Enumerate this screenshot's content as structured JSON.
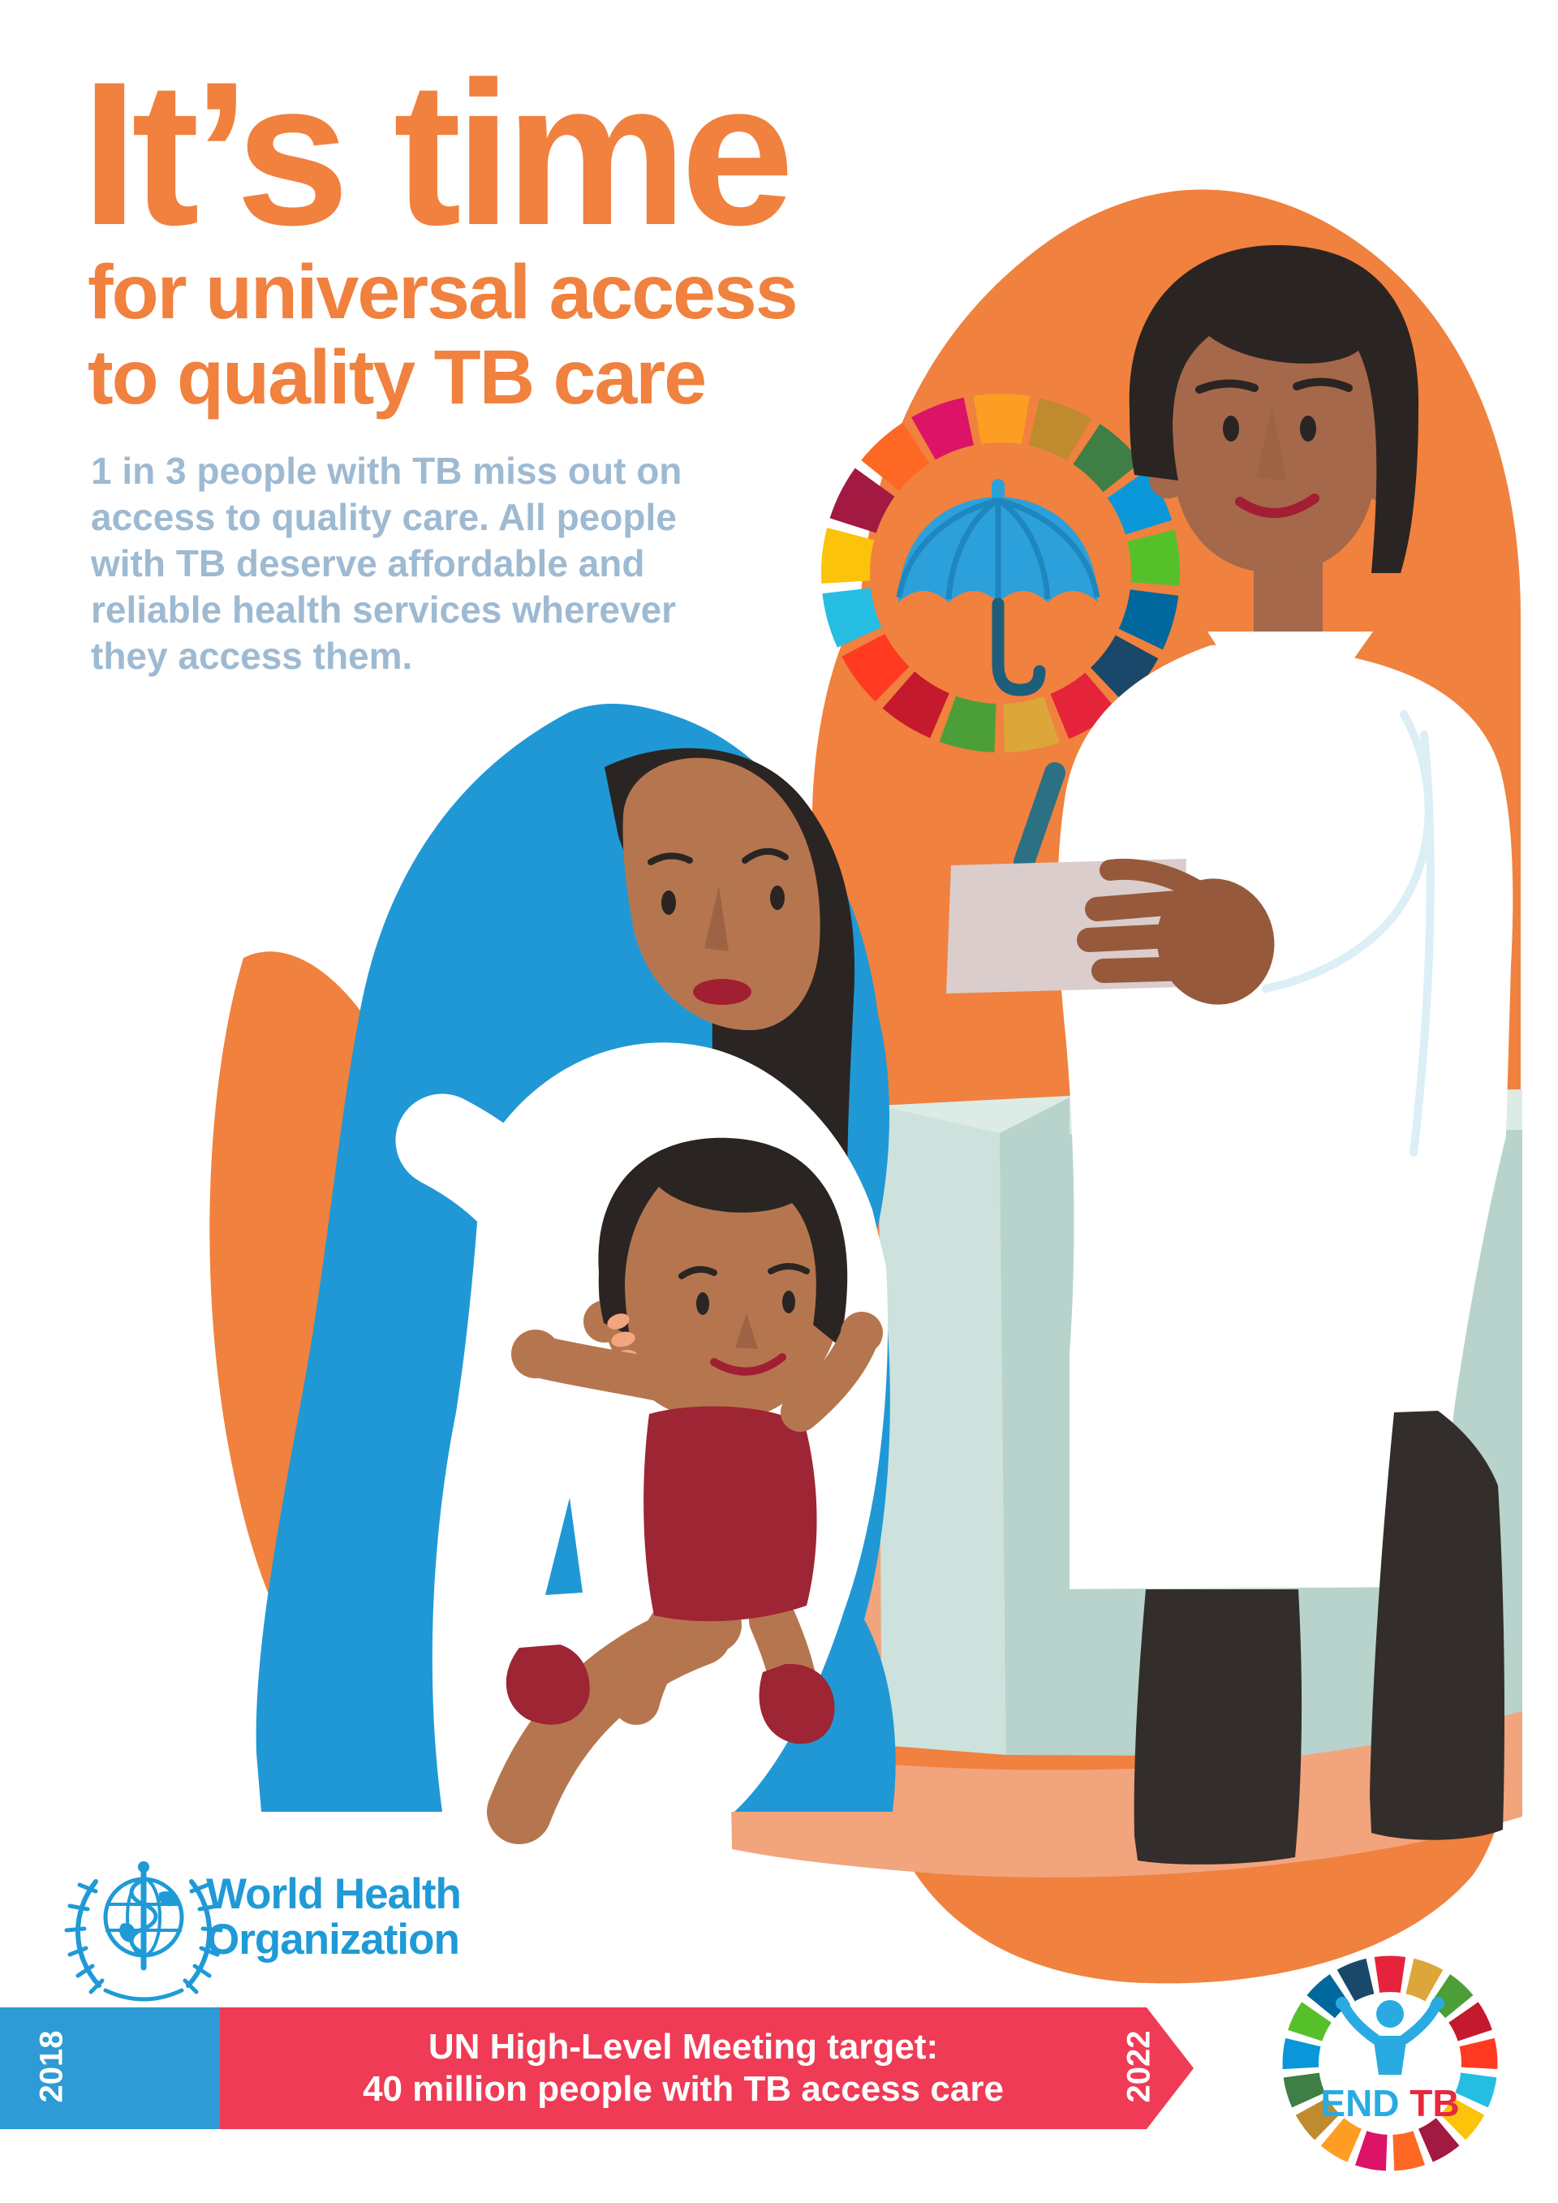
{
  "title": "It’s time",
  "subtitle": {
    "line1": "for universal access",
    "line2": "to quality TB care"
  },
  "body_lines": [
    "1 in 3 people with TB miss out on",
    "access to quality care. All people",
    "with TB deserve affordable and",
    "reliable health services wherever",
    "they access them."
  ],
  "who_logo": {
    "line1": "World Health",
    "line2": "Organization"
  },
  "timeline_banner": {
    "start_year": "2018",
    "end_year": "2022",
    "target_line1": "UN High-Level Meeting target:",
    "target_line2": "40 million people with TB access care"
  },
  "endtb_logo": {
    "end": "END",
    "tb": "TB"
  },
  "palette": {
    "orange": "#F0813E",
    "body_text": "#9EBAD2",
    "who_blue": "#1F9AD7",
    "banner_blue": "#2E9AD6",
    "banner_red": "#EF3B55",
    "hijab_blue": "#2098D6",
    "skin_mother": "#B5764F",
    "skin_doctor": "#A5684A",
    "skin_hand": "#96593B",
    "light_skin": "#F2A67F",
    "hair": "#2A2522",
    "lips": "#A21F33",
    "nose_shadow": "#9D6343",
    "romper": "#9E2534",
    "trousers": "#332E2B",
    "paper": "#DACDCC",
    "pen": "#2C7083",
    "umbrella": "#2CA0DA",
    "umbrella_rib": "#1E87BF",
    "umbrella_handle": "#1D5F7A",
    "bed_top": "#DCEBE6",
    "bed_front": "#CDE2DC",
    "bed_side": "#B7D3CC",
    "salmon": "#F2A47D",
    "coat_fold": "#DCEEF6",
    "white": "#FFFFFF",
    "endtb_blue": "#29ABE2",
    "endtb_red": "#E8283F"
  },
  "sdg_wheel_colors": [
    "#E5243B",
    "#DDA63A",
    "#4C9F38",
    "#C5192D",
    "#FF3A21",
    "#26BDE2",
    "#FCC30B",
    "#A21942",
    "#FD6925",
    "#DD1367",
    "#FD9D24",
    "#BF8B2E",
    "#3F7E44",
    "#0A97D9",
    "#56C02B",
    "#00689D",
    "#19486A"
  ]
}
